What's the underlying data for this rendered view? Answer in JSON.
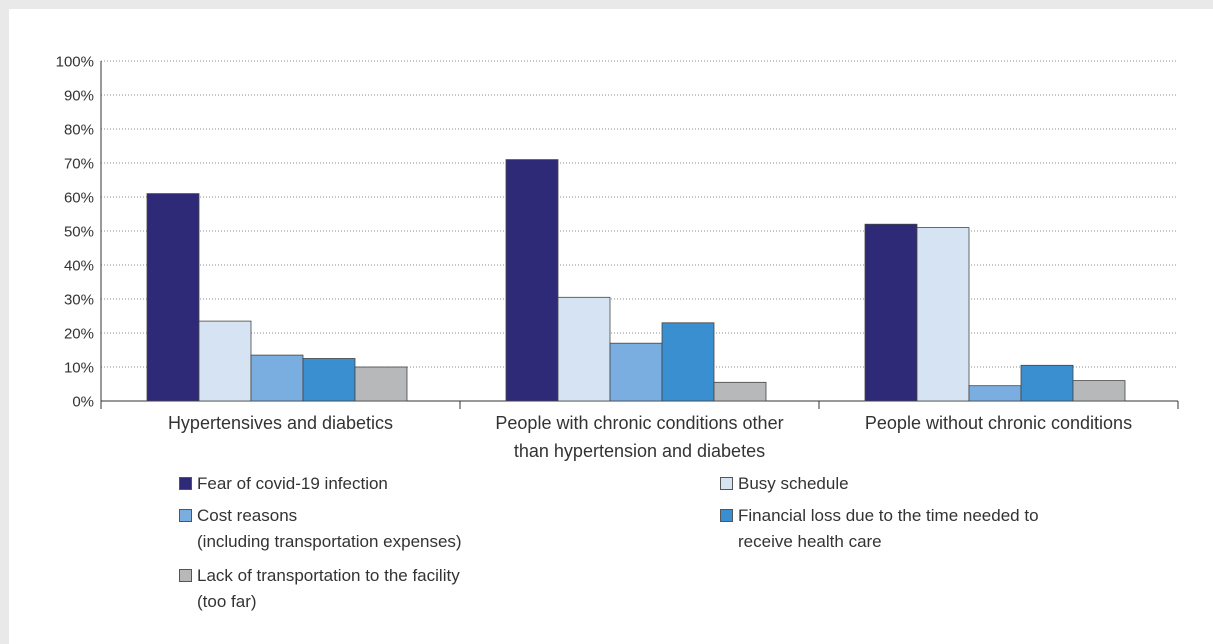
{
  "chart_data": {
    "type": "bar",
    "categories": [
      [
        "Hypertensives and diabetics"
      ],
      [
        "People with chronic conditions other",
        "than hypertension and diabetes"
      ],
      [
        "People without chronic conditions"
      ]
    ],
    "series": [
      {
        "name": "Fear of covid-19 infection",
        "color": "#2e2a78",
        "values": [
          61,
          71,
          52
        ]
      },
      {
        "name": "Busy schedule",
        "color": "#d6e3f3",
        "values": [
          23.5,
          30.5,
          51
        ]
      },
      {
        "name": "Cost reasons",
        "name_line2": "(including transportation expenses)",
        "color": "#7aaee0",
        "values": [
          13.5,
          17,
          4.5
        ]
      },
      {
        "name": "Financial loss due to the time needed to",
        "name_line2": "receive health care",
        "color": "#3a8fd1",
        "values": [
          12.5,
          23,
          10.5
        ]
      },
      {
        "name": "Lack of transportation to the facility",
        "name_line2": "(too far)",
        "color": "#b7b8ba",
        "values": [
          10,
          5.5,
          6
        ]
      }
    ],
    "y_ticks": [
      "0%",
      "10%",
      "20%",
      "30%",
      "40%",
      "50%",
      "60%",
      "70%",
      "80%",
      "90%",
      "100%"
    ],
    "ylim": [
      0,
      100
    ],
    "grid": "horizontal dotted",
    "legend_position": "bottom",
    "title": "",
    "xlabel": "",
    "ylabel": ""
  }
}
